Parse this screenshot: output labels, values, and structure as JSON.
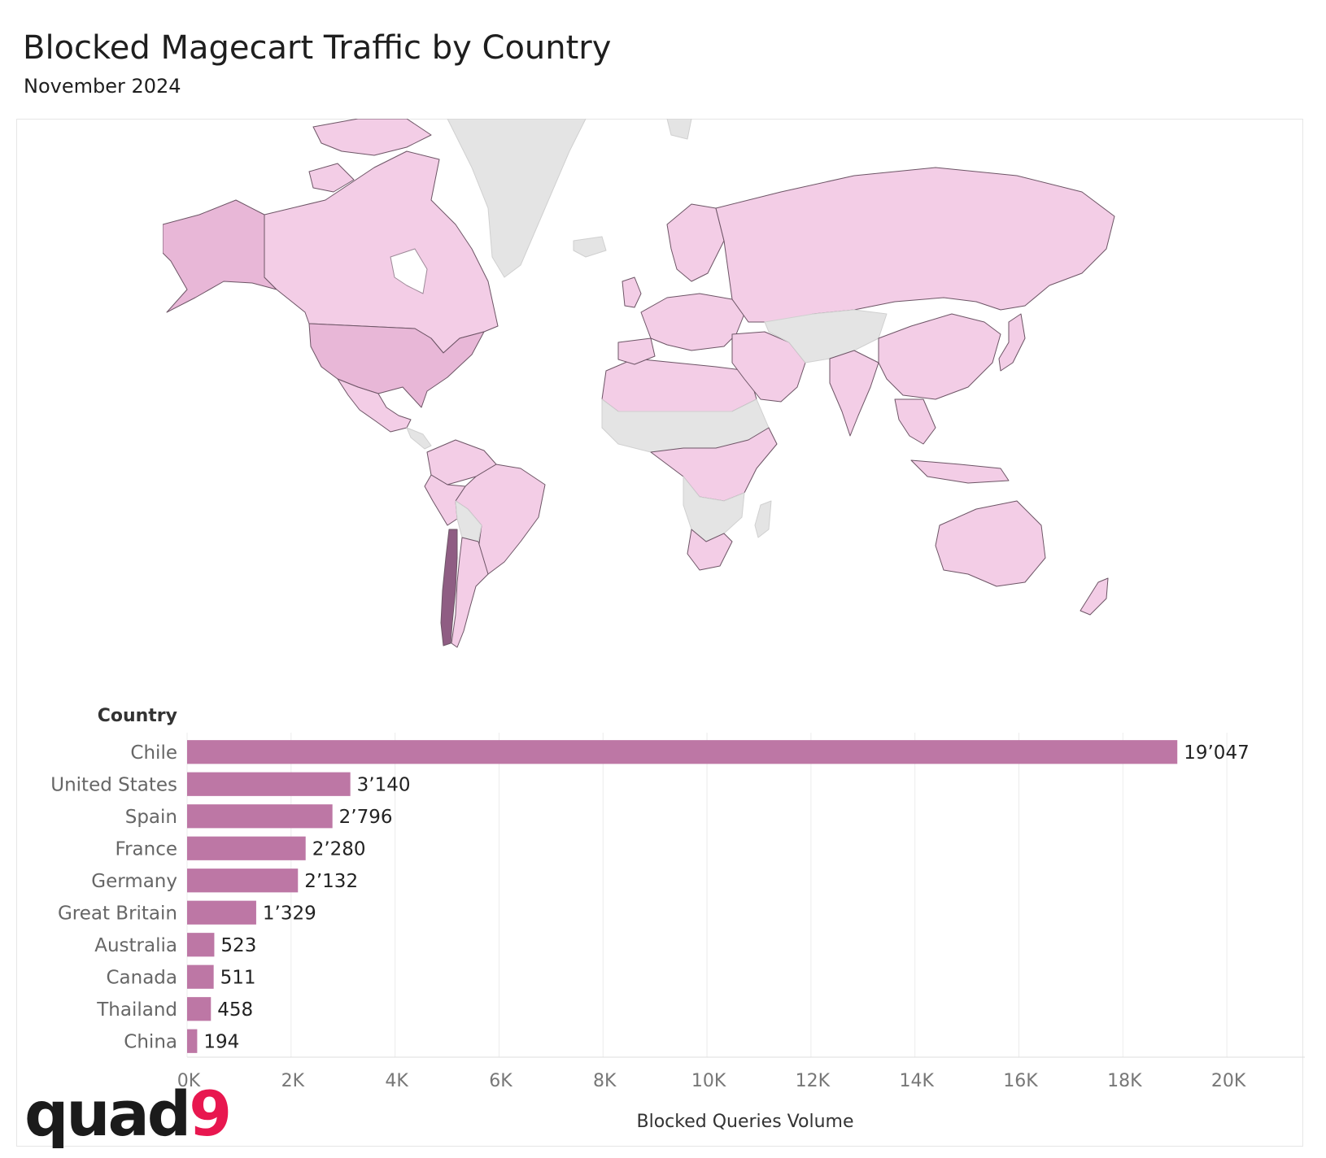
{
  "header": {
    "title": "Blocked Magecart Traffic by Country",
    "subtitle": "November 2024"
  },
  "logo": {
    "text_main": "quad",
    "text_accent": "9",
    "accent_color": "#e8174f"
  },
  "map": {
    "highlight_country": "Chile",
    "colors": {
      "no_data": "#e4e4e4",
      "low": "#f3cde6",
      "mid": "#e8b7d7",
      "high": "#8f5d83",
      "border": "#6d5566"
    }
  },
  "chart_data": {
    "type": "bar",
    "orientation": "horizontal",
    "category_header": "Country",
    "categories": [
      "Chile",
      "United States",
      "Spain",
      "France",
      "Germany",
      "Great Britain",
      "Australia",
      "Canada",
      "Thailand",
      "China"
    ],
    "values": [
      19047,
      3140,
      2796,
      2280,
      2132,
      1329,
      523,
      511,
      458,
      194
    ],
    "value_labels": [
      "19’047",
      "3’140",
      "2’796",
      "2’280",
      "2’132",
      "1’329",
      "523",
      "511",
      "458",
      "194"
    ],
    "xlabel": "Blocked Queries Volume",
    "xlim": [
      0,
      21500
    ],
    "x_ticks": [
      0,
      2000,
      4000,
      6000,
      8000,
      10000,
      12000,
      14000,
      16000,
      18000,
      20000
    ],
    "x_tick_labels": [
      "0K",
      "2K",
      "4K",
      "6K",
      "8K",
      "10K",
      "12K",
      "14K",
      "16K",
      "18K",
      "20K"
    ],
    "bar_color": "#bd77a5",
    "grid": true
  }
}
